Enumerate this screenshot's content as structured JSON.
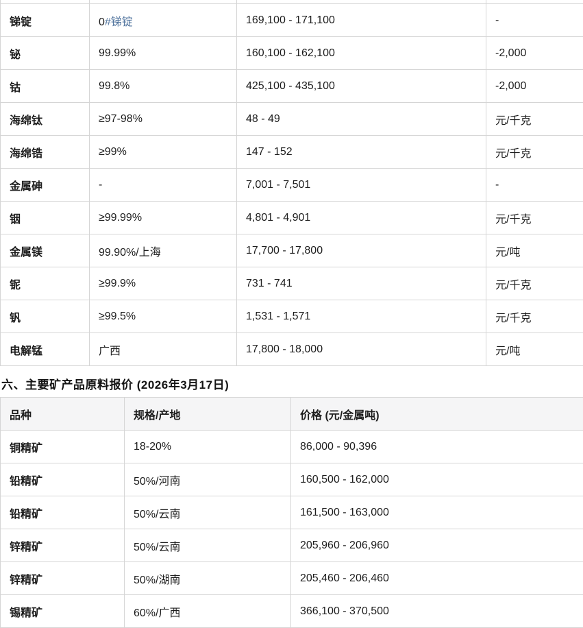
{
  "colors": {
    "border": "#d5d5d5",
    "text": "#1d1d1d",
    "table_header_bg": "#f5f5f6",
    "hashtag_link": "#51749e"
  },
  "metals_table": {
    "rows": [
      {
        "name": "锑锭",
        "spec_prefix": "0",
        "spec_link": "#锑锭",
        "price": "169,100 - 171,100",
        "extra": "-"
      },
      {
        "name": "铋",
        "spec": "99.99%",
        "price": "160,100 - 162,100",
        "extra": "-2,000"
      },
      {
        "name": "钴",
        "spec": "99.8%",
        "price": "425,100 - 435,100",
        "extra": "-2,000"
      },
      {
        "name": "海绵钛",
        "spec": "≥97-98%",
        "price": "48 - 49",
        "extra": "元/千克"
      },
      {
        "name": "海绵锆",
        "spec": "≥99%",
        "price": "147 - 152",
        "extra": "元/千克"
      },
      {
        "name": "金属砷",
        "spec": "-",
        "price": "7,001 - 7,501",
        "extra": "-"
      },
      {
        "name": "铟",
        "spec": "≥99.99%",
        "price": "4,801 - 4,901",
        "extra": "元/千克"
      },
      {
        "name": "金属镁",
        "spec": "99.90%/上海",
        "price": "17,700 - 17,800",
        "extra": "元/吨"
      },
      {
        "name": "铌",
        "spec": "≥99.9%",
        "price": "731 - 741",
        "extra": "元/千克"
      },
      {
        "name": "钒",
        "spec": "≥99.5%",
        "price": "1,531 - 1,571",
        "extra": "元/千克"
      },
      {
        "name": "电解锰",
        "spec": "广西",
        "price": "17,800 - 18,000",
        "extra": "元/吨"
      }
    ]
  },
  "section_heading": "六、主要矿产品原料报价 (2026年3月17日)",
  "ore_table": {
    "headers": [
      "品种",
      "规格/产地",
      "价格 (元/金属吨)"
    ],
    "rows": [
      {
        "name": "铜精矿",
        "spec": "18-20%",
        "price": "86,000 - 90,396"
      },
      {
        "name": "铅精矿",
        "spec": "50%/河南",
        "price": "160,500 - 162,000"
      },
      {
        "name": "铅精矿",
        "spec": "50%/云南",
        "price": "161,500 - 163,000"
      },
      {
        "name": "锌精矿",
        "spec": "50%/云南",
        "price": "205,960 - 206,960"
      },
      {
        "name": "锌精矿",
        "spec": "50%/湖南",
        "price": "205,460 - 206,460"
      },
      {
        "name": "锡精矿",
        "spec": "60%/广西",
        "price": "366,100 - 370,500"
      }
    ]
  }
}
